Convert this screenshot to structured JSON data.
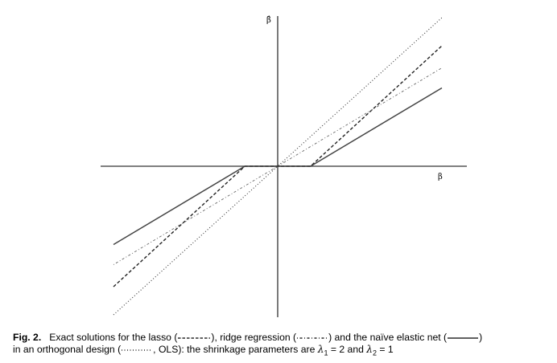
{
  "figure": {
    "y_label": "β̂",
    "x_label": "β"
  },
  "chart_data": {
    "type": "line",
    "xlim": [
      -4.4,
      4.6
    ],
    "ylim": [
      -3.8,
      3.8
    ],
    "lambda1": 2,
    "lambda2": 1,
    "series": [
      {
        "id": "ols",
        "style": "dotted",
        "x": [
          -4.0,
          4.0
        ],
        "y": [
          -3.7,
          3.7
        ]
      },
      {
        "id": "lasso",
        "style": "dashed",
        "x": [
          -4.0,
          -0.8,
          0.8,
          4.0
        ],
        "y": [
          -3.0,
          0,
          0,
          3.0
        ]
      },
      {
        "id": "ridge",
        "style": "dashdot",
        "x": [
          -4.0,
          4.0
        ],
        "y": [
          -2.45,
          2.45
        ]
      },
      {
        "id": "naive_elastic_net",
        "style": "solid",
        "x": [
          -4.0,
          -0.8,
          0.8,
          4.0
        ],
        "y": [
          -1.95,
          0,
          0,
          1.95
        ]
      }
    ]
  },
  "caption": {
    "fig_no": "Fig. 2.",
    "t1": "Exact solutions for the lasso (",
    "t2": "), ridge regression (",
    "t3": ") and the naïve elastic net (",
    "t4": ")",
    "t5": "in an orthogonal design (",
    "t6": ", OLS): the shrinkage parameters are ",
    "lambda_sym": "λ",
    "sub1": "1",
    "eq1": " = 2 and ",
    "sub2": "2",
    "eq2": " = 1"
  }
}
